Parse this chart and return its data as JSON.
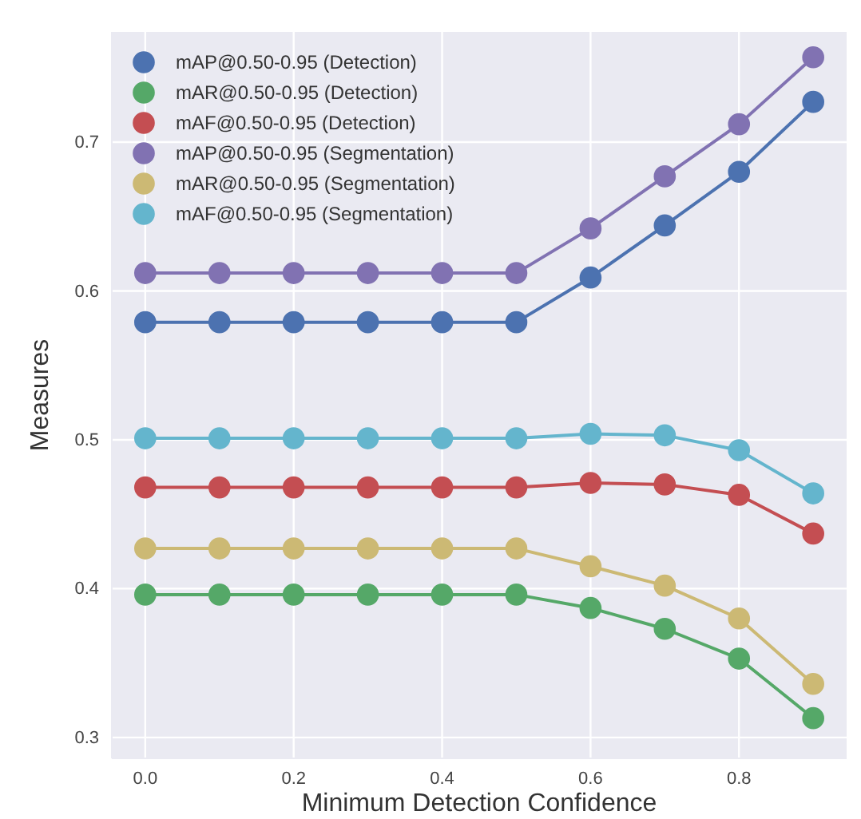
{
  "chart_data": {
    "type": "line",
    "xlabel": "Minimum Detection Confidence",
    "ylabel": "Measures",
    "x": [
      0,
      0.1,
      0.2,
      0.3,
      0.4,
      0.5,
      0.6,
      0.7,
      0.8,
      0.9
    ],
    "series": [
      {
        "name": "mAP@0.50-0.95 (Detection)",
        "color": "#4c72b0",
        "values": [
          0.579,
          0.579,
          0.579,
          0.579,
          0.579,
          0.579,
          0.609,
          0.644,
          0.68,
          0.727
        ]
      },
      {
        "name": "mAR@0.50-0.95 (Detection)",
        "color": "#55a868",
        "values": [
          0.396,
          0.396,
          0.396,
          0.396,
          0.396,
          0.396,
          0.387,
          0.373,
          0.353,
          0.313
        ]
      },
      {
        "name": "mAF@0.50-0.95 (Detection)",
        "color": "#c44e52",
        "values": [
          0.468,
          0.468,
          0.468,
          0.468,
          0.468,
          0.468,
          0.471,
          0.47,
          0.463,
          0.437
        ]
      },
      {
        "name": "mAP@0.50-0.95 (Segmentation)",
        "color": "#8172b2",
        "values": [
          0.612,
          0.612,
          0.612,
          0.612,
          0.612,
          0.612,
          0.642,
          0.677,
          0.712,
          0.757
        ]
      },
      {
        "name": "mAR@0.50-0.95 (Segmentation)",
        "color": "#ccb974",
        "values": [
          0.427,
          0.427,
          0.427,
          0.427,
          0.427,
          0.427,
          0.415,
          0.402,
          0.38,
          0.336
        ]
      },
      {
        "name": "mAF@0.50-0.95 (Segmentation)",
        "color": "#64b5cd",
        "values": [
          0.501,
          0.501,
          0.501,
          0.501,
          0.501,
          0.501,
          0.504,
          0.503,
          0.493,
          0.464
        ]
      }
    ],
    "xlim": [
      -0.045,
      0.945
    ],
    "ylim": [
      0.286,
      0.774
    ],
    "xticks": [
      {
        "value": 0,
        "label": "0.0"
      },
      0.2,
      0.4,
      0.6,
      0.8
    ],
    "yticks": [
      0.3,
      0.4,
      0.5,
      0.6,
      0.7
    ],
    "grid": true,
    "legend": "top left",
    "marker": "circle",
    "line_style": "solid"
  }
}
